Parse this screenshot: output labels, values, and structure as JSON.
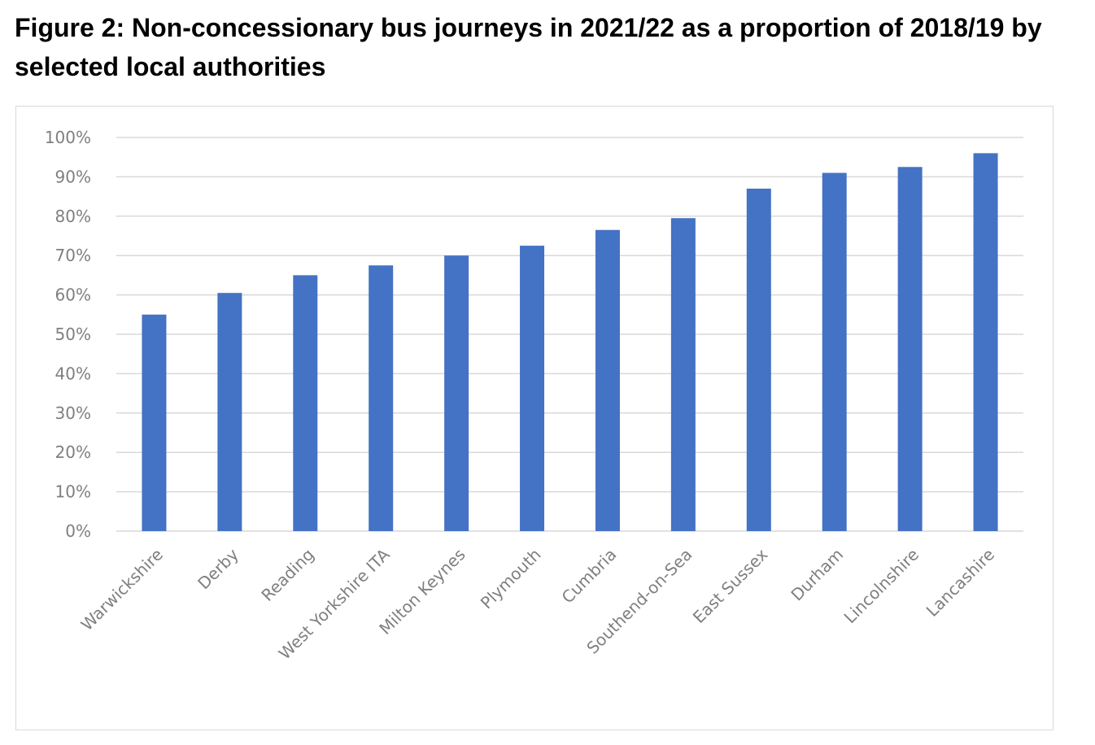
{
  "figure_title": "Figure 2: Non-concessionary bus journeys in 2021/22 as a proportion of 2018/19 by selected local authorities",
  "colors": {
    "bar": "#4472c4",
    "gridline": "#d9d9d9",
    "axis_text": "#7f7f7f"
  },
  "chart_data": {
    "type": "bar",
    "title": "",
    "xlabel": "",
    "ylabel": "",
    "categories": [
      "Warwickshire",
      "Derby",
      "Reading",
      "West Yorkshire ITA",
      "Milton Keynes",
      "Plymouth",
      "Cumbria",
      "Southend-on-Sea",
      "East Sussex",
      "Durham",
      "Lincolnshire",
      "Lancashire"
    ],
    "values": [
      55,
      60.5,
      65,
      67.5,
      70,
      72.5,
      76.5,
      79.5,
      87,
      91,
      92.5,
      96
    ],
    "ylim": [
      0,
      100
    ],
    "yticks": [
      0,
      10,
      20,
      30,
      40,
      50,
      60,
      70,
      80,
      90,
      100
    ],
    "ytick_labels": [
      "0%",
      "10%",
      "20%",
      "30%",
      "40%",
      "50%",
      "60%",
      "70%",
      "80%",
      "90%",
      "100%"
    ],
    "grid": true,
    "legend": "none"
  }
}
